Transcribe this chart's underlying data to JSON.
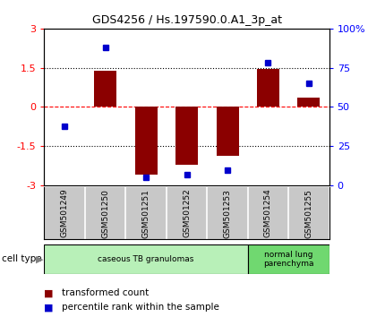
{
  "title": "GDS4256 / Hs.197590.0.A1_3p_at",
  "samples": [
    "GSM501249",
    "GSM501250",
    "GSM501251",
    "GSM501252",
    "GSM501253",
    "GSM501254",
    "GSM501255"
  ],
  "transformed_count": [
    0.0,
    1.4,
    -2.6,
    -2.2,
    -1.85,
    1.45,
    0.35
  ],
  "percentile_rank": [
    38,
    88,
    5,
    7,
    10,
    78,
    65
  ],
  "ylim_left": [
    -3,
    3
  ],
  "ylim_right": [
    0,
    100
  ],
  "yticks_left": [
    -3,
    -1.5,
    0,
    1.5,
    3
  ],
  "yticks_right": [
    0,
    25,
    50,
    75,
    100
  ],
  "ytick_labels_right": [
    "0",
    "25",
    "50",
    "75",
    "100%"
  ],
  "bar_color": "#8B0000",
  "dot_color": "#0000CC",
  "bar_width": 0.55,
  "cell_groups": [
    {
      "label": "caseous TB granulomas",
      "samples": [
        0,
        1,
        2,
        3,
        4
      ],
      "color": "#b8f0b8"
    },
    {
      "label": "normal lung\nparenchyma",
      "samples": [
        5,
        6
      ],
      "color": "#70d870"
    }
  ],
  "cell_type_label": "cell type",
  "legend_items": [
    {
      "color": "#8B0000",
      "label": "transformed count"
    },
    {
      "color": "#0000CC",
      "label": "percentile rank within the sample"
    }
  ],
  "background_color": "#ffffff",
  "plot_bg_color": "#ffffff",
  "tick_area_bg": "#c8c8c8"
}
